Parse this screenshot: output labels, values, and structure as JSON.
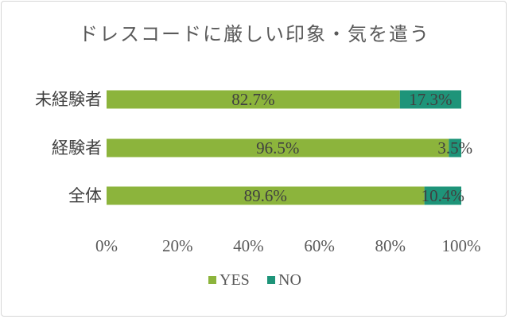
{
  "chart_data": {
    "type": "bar",
    "orientation": "horizontal",
    "stacked": true,
    "title": "ドレスコードに厳しい印象・気を遣う",
    "categories": [
      "未経験者",
      "経験者",
      "全体"
    ],
    "series": [
      {
        "name": "YES",
        "color": "#8cb43c",
        "values": [
          82.7,
          96.5,
          89.6
        ],
        "labels": [
          "82.7%",
          "96.5%",
          "89.6%"
        ]
      },
      {
        "name": "NO",
        "color": "#1e9479",
        "values": [
          17.3,
          3.5,
          10.4
        ],
        "labels": [
          "17.3%",
          "3.5%",
          "10.4%"
        ]
      }
    ],
    "xlim": [
      0,
      100
    ],
    "x_ticks": [
      0,
      20,
      40,
      60,
      80,
      100
    ],
    "x_tick_labels": [
      "0%",
      "20%",
      "40%",
      "60%",
      "80%",
      "100%"
    ],
    "grid": false,
    "legend_position": "bottom"
  }
}
